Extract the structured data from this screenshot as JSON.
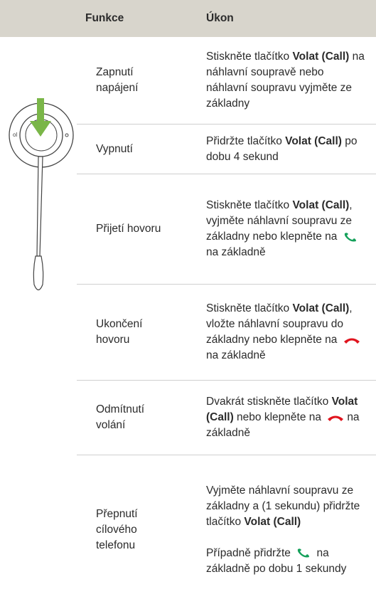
{
  "header": {
    "function": "Funkce",
    "action": "Úkon"
  },
  "rows": [
    {
      "function": "Zapnutí napájení",
      "action": [
        "Stiskněte tlačítko ",
        "Volat (Call)",
        " na náhlavní soupravě nebo náhlavní soupravu vyjměte ze základny"
      ]
    },
    {
      "function": "Vypnutí",
      "action": [
        "Přidržte tlačítko ",
        "Volat (Call)",
        " po dobu 4 sekund"
      ]
    },
    {
      "function": "Přijetí hovoru",
      "action": [
        "Stiskněte tlačítko ",
        "Volat (Call)",
        ", vyjměte náhlavní soupravu ze základny nebo klepněte na ",
        "na základně"
      ]
    },
    {
      "function": "Ukončení hovoru",
      "action": [
        "Stiskněte tlačítko ",
        "Volat (Call)",
        ", vložte náhlavní soupravu do základny nebo klepněte na ",
        "na základně"
      ]
    },
    {
      "function": "Odmítnutí volání",
      "action": [
        "Dvakrát stiskněte tlačítko ",
        "Volat (Call)",
        " nebo klepněte na ",
        "na základně"
      ]
    },
    {
      "function": "Přepnutí cílového telefonu",
      "action": [
        "Vyjměte náhlavní soupravu ze základny a (1 sekundu) přidržte tlačítko ",
        "Volat (Call)"
      ],
      "note": [
        "Případně přidržte ",
        "na základně po dobu 1 sekundy"
      ]
    }
  ]
}
